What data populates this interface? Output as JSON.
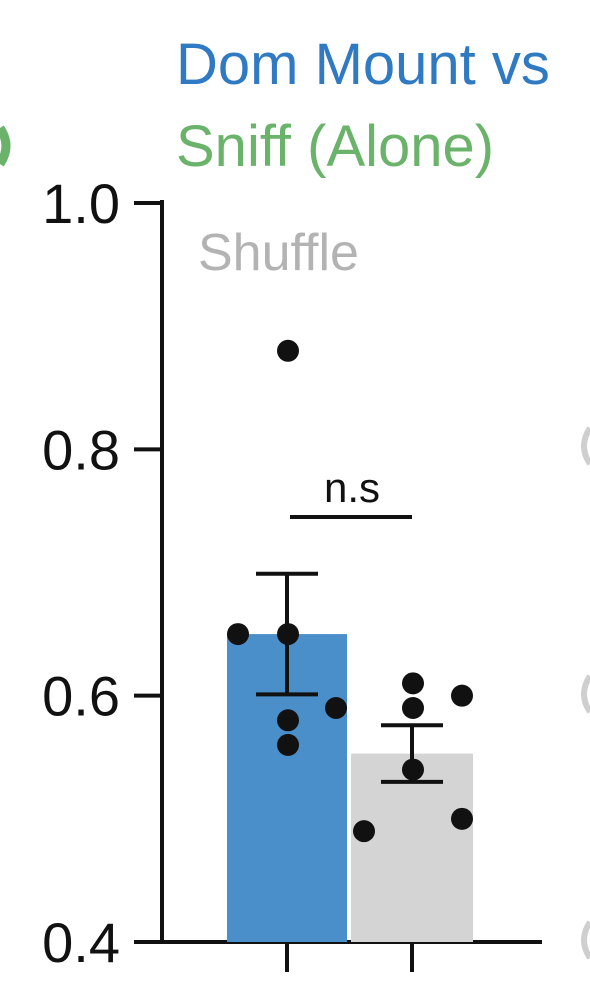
{
  "chart_data": {
    "type": "bar",
    "title_lines": [
      {
        "text": "Dom Mount vs",
        "color": "#2f7ac2"
      },
      {
        "text": "Sniff (Alone)",
        "color": "#6bb36b"
      }
    ],
    "legend": {
      "text": "Shuffle",
      "color": "#b3b3b3"
    },
    "ylim": [
      0.4,
      1.0
    ],
    "yticks": [
      "0.4",
      "0.6",
      "0.8",
      "1.0"
    ],
    "series": [
      {
        "key": "observed",
        "color": "#4b8fca",
        "value": 0.65,
        "error": 0.049,
        "points": [
          0.88,
          0.65,
          0.65,
          0.59,
          0.58,
          0.56
        ]
      },
      {
        "key": "shuffle",
        "color": "#d4d4d4",
        "value": 0.553,
        "error": 0.023,
        "points": [
          0.61,
          0.6,
          0.59,
          0.54,
          0.5,
          0.49
        ]
      }
    ],
    "annotation": {
      "text": "n.s"
    }
  }
}
